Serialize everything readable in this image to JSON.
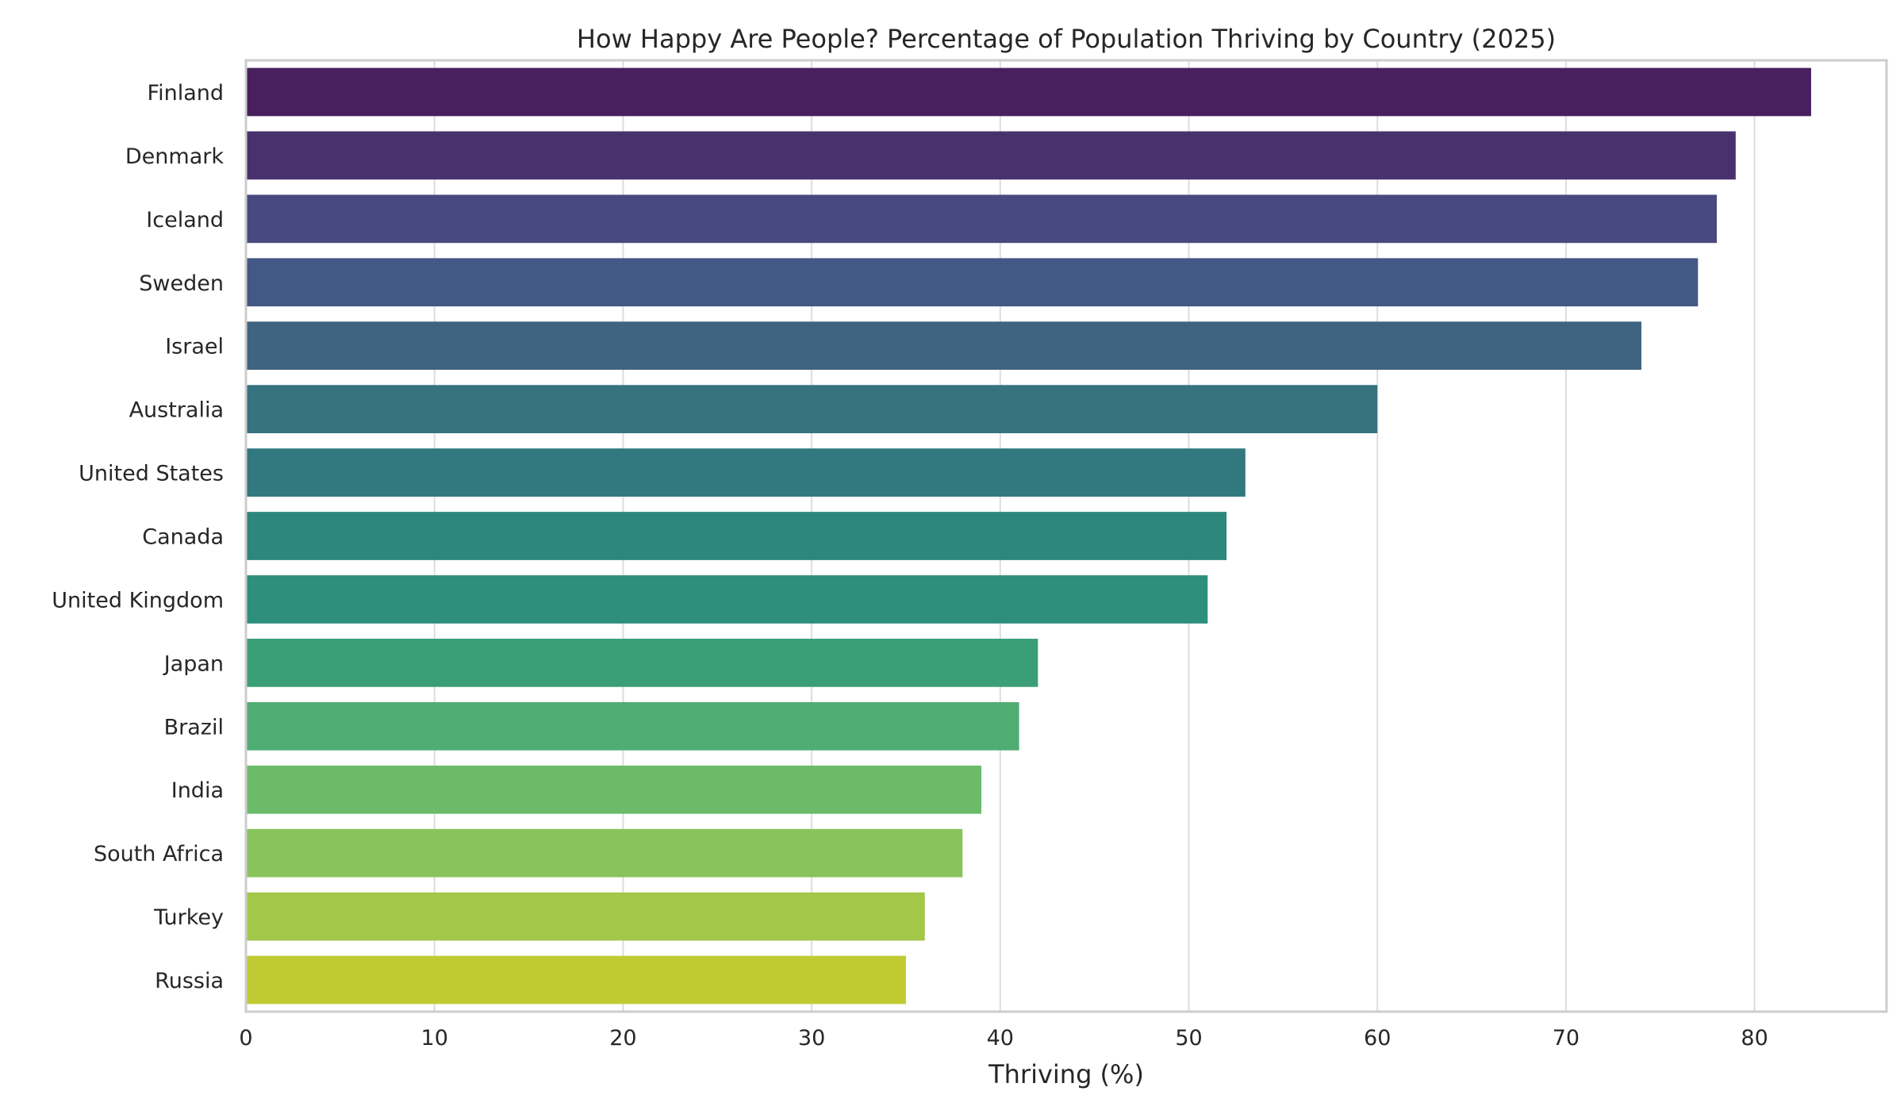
{
  "chart_data": {
    "type": "bar",
    "orientation": "horizontal",
    "title": "How Happy Are People? Percentage of Population Thriving by Country (2025)",
    "xlabel": "Thriving (%)",
    "ylabel": "",
    "xlim": [
      0,
      87
    ],
    "xticks": [
      0,
      10,
      20,
      30,
      40,
      50,
      60,
      70,
      80
    ],
    "grid": "vertical",
    "legend": "none",
    "categories": [
      "Finland",
      "Denmark",
      "Iceland",
      "Sweden",
      "Israel",
      "Australia",
      "United States",
      "Canada",
      "United Kingdom",
      "Japan",
      "Brazil",
      "India",
      "South Africa",
      "Turkey",
      "Russia"
    ],
    "values": [
      83,
      79,
      78,
      77,
      74,
      60,
      53,
      52,
      51,
      42,
      41,
      39,
      38,
      36,
      35
    ],
    "colors": [
      "#48205f",
      "#48326e",
      "#484a7f",
      "#435885",
      "#3f6481",
      "#37727f",
      "#31797e",
      "#2d877c",
      "#2d8f7c",
      "#3a9e76",
      "#4fad73",
      "#6cbb6a",
      "#89c35b",
      "#a2c749",
      "#c0ca33"
    ]
  }
}
